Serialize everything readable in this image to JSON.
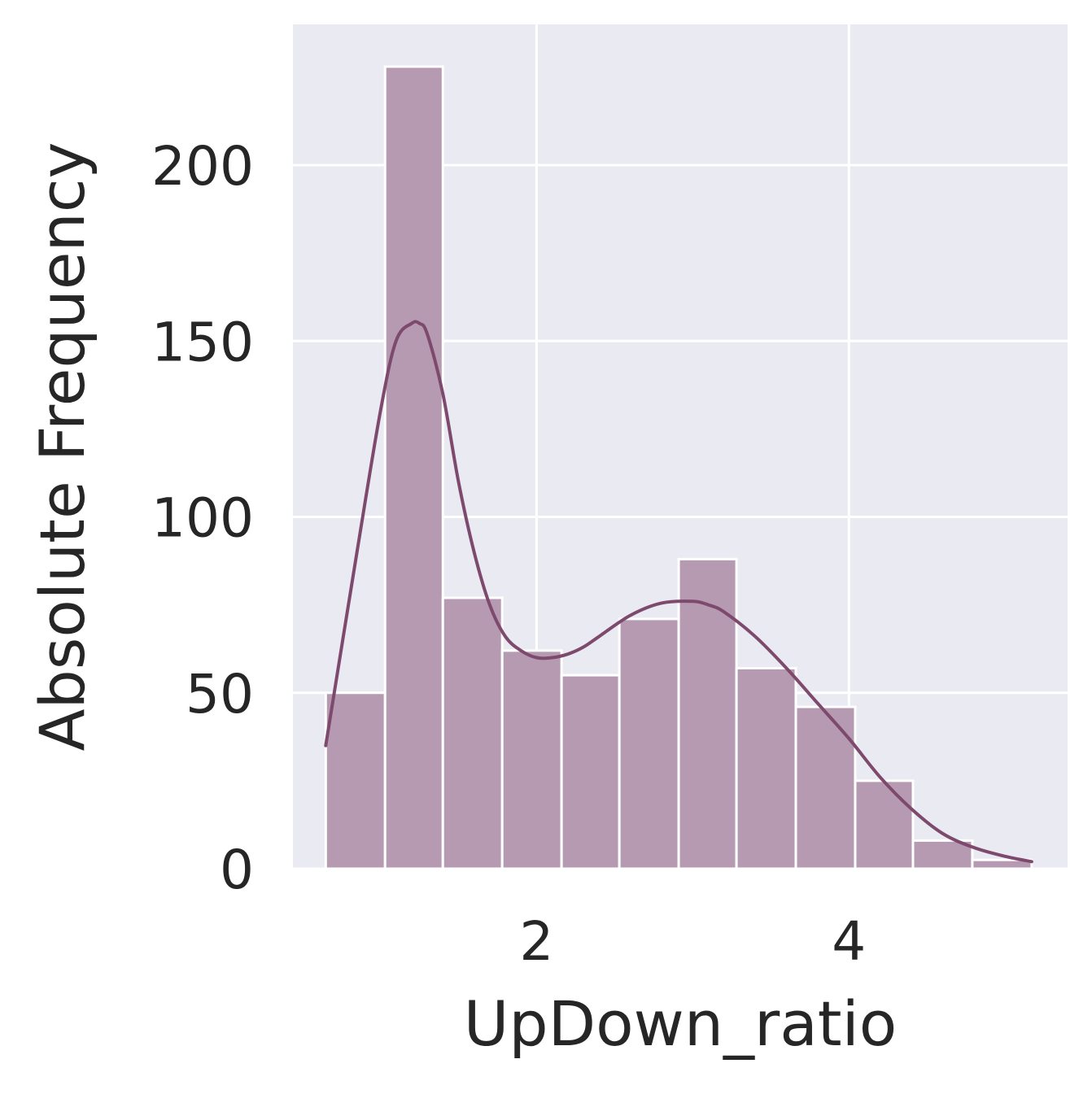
{
  "chart_data": {
    "type": "bar",
    "subtype": "histogram_with_kde",
    "xlabel": "UpDown_ratio",
    "ylabel": "Absolute Frequency",
    "xlim": [
      0.44,
      5.4
    ],
    "ylim": [
      0,
      240
    ],
    "xticks": [
      2,
      4
    ],
    "yticks": [
      0,
      50,
      100,
      150,
      200
    ],
    "grid": true,
    "colors": {
      "background": "#eaeaf2",
      "grid": "#ffffff",
      "bar_fill": "#b59ab1",
      "bar_edge": "#ffffff",
      "kde_line": "#7d4a6e"
    },
    "bins": [
      {
        "x0": 0.65,
        "x1": 1.03,
        "count": 50
      },
      {
        "x0": 1.03,
        "x1": 1.4,
        "count": 228
      },
      {
        "x0": 1.4,
        "x1": 1.78,
        "count": 77
      },
      {
        "x0": 1.78,
        "x1": 2.16,
        "count": 62
      },
      {
        "x0": 2.16,
        "x1": 2.53,
        "count": 55
      },
      {
        "x0": 2.53,
        "x1": 2.91,
        "count": 71
      },
      {
        "x0": 2.91,
        "x1": 3.28,
        "count": 88
      },
      {
        "x0": 3.28,
        "x1": 3.66,
        "count": 57
      },
      {
        "x0": 3.66,
        "x1": 4.04,
        "count": 46
      },
      {
        "x0": 4.04,
        "x1": 4.41,
        "count": 25
      },
      {
        "x0": 4.41,
        "x1": 4.79,
        "count": 8
      },
      {
        "x0": 4.79,
        "x1": 5.17,
        "count": 2.5
      }
    ],
    "kde": {
      "x": [
        0.65,
        0.85,
        1.0,
        1.1,
        1.2,
        1.25,
        1.3,
        1.4,
        1.5,
        1.6,
        1.7,
        1.8,
        1.9,
        2.0,
        2.1,
        2.2,
        2.3,
        2.4,
        2.6,
        2.8,
        3.0,
        3.1,
        3.2,
        3.4,
        3.6,
        3.8,
        4.0,
        4.2,
        4.4,
        4.6,
        4.8,
        5.0,
        5.17
      ],
      "y": [
        35,
        90,
        130,
        150,
        155,
        155,
        152,
        135,
        110,
        90,
        75,
        66,
        62,
        60,
        60,
        61,
        63,
        66,
        72,
        75.5,
        76,
        75,
        73,
        66,
        57,
        47,
        37,
        26,
        17,
        10,
        6,
        3.5,
        2
      ]
    }
  }
}
